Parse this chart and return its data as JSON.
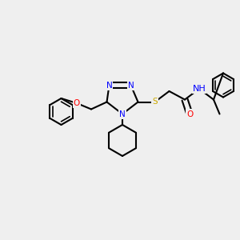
{
  "bg_color": "#efefef",
  "bond_color": "#000000",
  "bond_lw": 1.5,
  "font_size": 7.5,
  "atom_colors": {
    "N": "#0000ff",
    "O": "#ff0000",
    "S": "#ccaa00",
    "H": "#888888",
    "C": "#000000"
  }
}
